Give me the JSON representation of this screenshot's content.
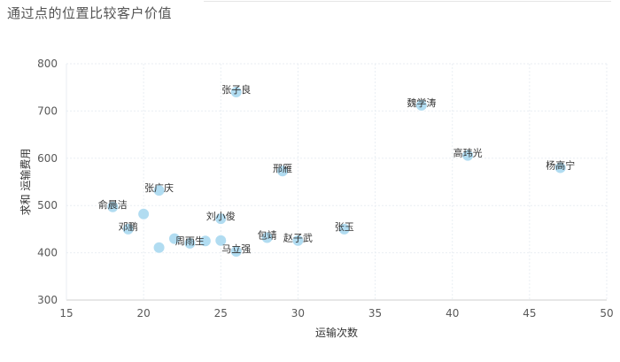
{
  "title": "通过点的位置比较客户价值",
  "chart_data": {
    "type": "scatter",
    "title": "通过点的位置比较客户价值",
    "xlabel": "运输次数",
    "ylabel": "求和 运输费用",
    "xlim": [
      15,
      50
    ],
    "ylim": [
      300,
      800
    ],
    "xticks": [
      15,
      20,
      25,
      30,
      35,
      40,
      45,
      50
    ],
    "yticks": [
      300,
      400,
      500,
      600,
      700,
      800
    ],
    "grid": true,
    "point_color": "#a9d8f0",
    "points": [
      {
        "label": "张子良",
        "x": 26,
        "y": 740
      },
      {
        "label": "魏学涛",
        "x": 38,
        "y": 712
      },
      {
        "label": "高玮光",
        "x": 41,
        "y": 606
      },
      {
        "label": "杨高宁",
        "x": 47,
        "y": 580
      },
      {
        "label": "邢雁",
        "x": 29,
        "y": 573
      },
      {
        "label": "张广庆",
        "x": 21,
        "y": 532
      },
      {
        "label": "俞晨洁",
        "x": 18,
        "y": 497
      },
      {
        "label": "",
        "x": 20,
        "y": 482
      },
      {
        "label": "刘小俊",
        "x": 25,
        "y": 472
      },
      {
        "label": "邓鹏",
        "x": 19,
        "y": 450
      },
      {
        "label": "张玉",
        "x": 33,
        "y": 450
      },
      {
        "label": "包靖",
        "x": 28,
        "y": 432
      },
      {
        "label": "",
        "x": 22,
        "y": 430
      },
      {
        "label": "赵子武",
        "x": 30,
        "y": 426
      },
      {
        "label": "周雨生",
        "x": 23,
        "y": 420
      },
      {
        "label": "",
        "x": 24,
        "y": 425
      },
      {
        "label": "",
        "x": 25,
        "y": 426
      },
      {
        "label": "",
        "x": 21,
        "y": 411
      },
      {
        "label": "马立强",
        "x": 26,
        "y": 403
      }
    ]
  }
}
